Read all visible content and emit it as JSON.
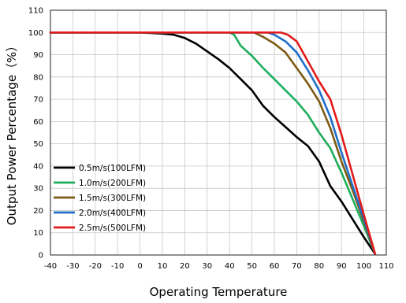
{
  "chart_data": {
    "type": "line",
    "title": "",
    "xlabel": "Operating Temperature",
    "ylabel": "Output Power Percentage（%）",
    "xlim": [
      -40,
      110
    ],
    "ylim": [
      0,
      110
    ],
    "xticks": [
      -40,
      -30,
      -20,
      -10,
      0,
      10,
      20,
      30,
      40,
      50,
      60,
      70,
      80,
      90,
      100,
      110
    ],
    "xtick_labels": [
      "-40",
      "-30",
      "-20",
      "-10",
      "0",
      "10",
      "20",
      "30",
      "40",
      "50",
      "60",
      "70",
      "80",
      "90",
      "100",
      "110"
    ],
    "yticks": [
      0,
      10,
      20,
      30,
      40,
      50,
      60,
      70,
      80,
      90,
      100,
      110
    ],
    "ytick_labels": [
      "0",
      "10",
      "20",
      "30",
      "40",
      "50",
      "60",
      "70",
      "80",
      "90",
      "100",
      "110"
    ],
    "grid": true,
    "legend_position": "lower-left",
    "series": [
      {
        "name": "0.5m/s(100LFM)",
        "color": "#000000",
        "points": [
          [
            -40,
            100
          ],
          [
            0,
            100
          ],
          [
            10,
            99.5
          ],
          [
            15,
            99
          ],
          [
            20,
            97.5
          ],
          [
            25,
            95
          ],
          [
            30,
            91.5
          ],
          [
            35,
            88
          ],
          [
            40,
            84
          ],
          [
            45,
            79
          ],
          [
            50,
            74
          ],
          [
            55,
            67
          ],
          [
            60,
            62
          ],
          [
            65,
            57.5
          ],
          [
            70,
            53
          ],
          [
            75,
            49
          ],
          [
            80,
            42
          ],
          [
            85,
            31
          ],
          [
            90,
            24
          ],
          [
            95,
            16
          ],
          [
            100,
            8
          ],
          [
            105,
            0.5
          ]
        ]
      },
      {
        "name": "1.0m/s(200LFM)",
        "color": "#1fad5c",
        "points": [
          [
            -40,
            100
          ],
          [
            40,
            100
          ],
          [
            42,
            99
          ],
          [
            45,
            94
          ],
          [
            50,
            89.5
          ],
          [
            55,
            84
          ],
          [
            60,
            79
          ],
          [
            65,
            74
          ],
          [
            70,
            69
          ],
          [
            75,
            63
          ],
          [
            80,
            55
          ],
          [
            85,
            48
          ],
          [
            90,
            37
          ],
          [
            95,
            25
          ],
          [
            100,
            13
          ],
          [
            105,
            0.5
          ]
        ]
      },
      {
        "name": "1.5m/s(300LFM)",
        "color": "#7d5a14",
        "points": [
          [
            -40,
            100
          ],
          [
            51,
            100
          ],
          [
            55,
            98
          ],
          [
            60,
            95
          ],
          [
            65,
            91
          ],
          [
            70,
            84
          ],
          [
            75,
            77
          ],
          [
            80,
            69
          ],
          [
            85,
            57
          ],
          [
            90,
            42
          ],
          [
            95,
            29
          ],
          [
            100,
            15
          ],
          [
            105,
            0.5
          ]
        ]
      },
      {
        "name": "2.0m/s(400LFM)",
        "color": "#1f6ec8",
        "points": [
          [
            -40,
            100
          ],
          [
            57,
            100
          ],
          [
            60,
            99
          ],
          [
            65,
            96
          ],
          [
            70,
            91
          ],
          [
            75,
            83
          ],
          [
            80,
            74
          ],
          [
            85,
            62
          ],
          [
            90,
            46
          ],
          [
            95,
            31
          ],
          [
            100,
            16
          ],
          [
            105,
            0.5
          ]
        ]
      },
      {
        "name": "2.5m/s(500LFM)",
        "color": "#e11a1a",
        "points": [
          [
            -40,
            100
          ],
          [
            63,
            100
          ],
          [
            66,
            99
          ],
          [
            70,
            96
          ],
          [
            75,
            87
          ],
          [
            80,
            78
          ],
          [
            85,
            70
          ],
          [
            90,
            54
          ],
          [
            95,
            36
          ],
          [
            100,
            18
          ],
          [
            105,
            0.5
          ]
        ]
      }
    ]
  }
}
